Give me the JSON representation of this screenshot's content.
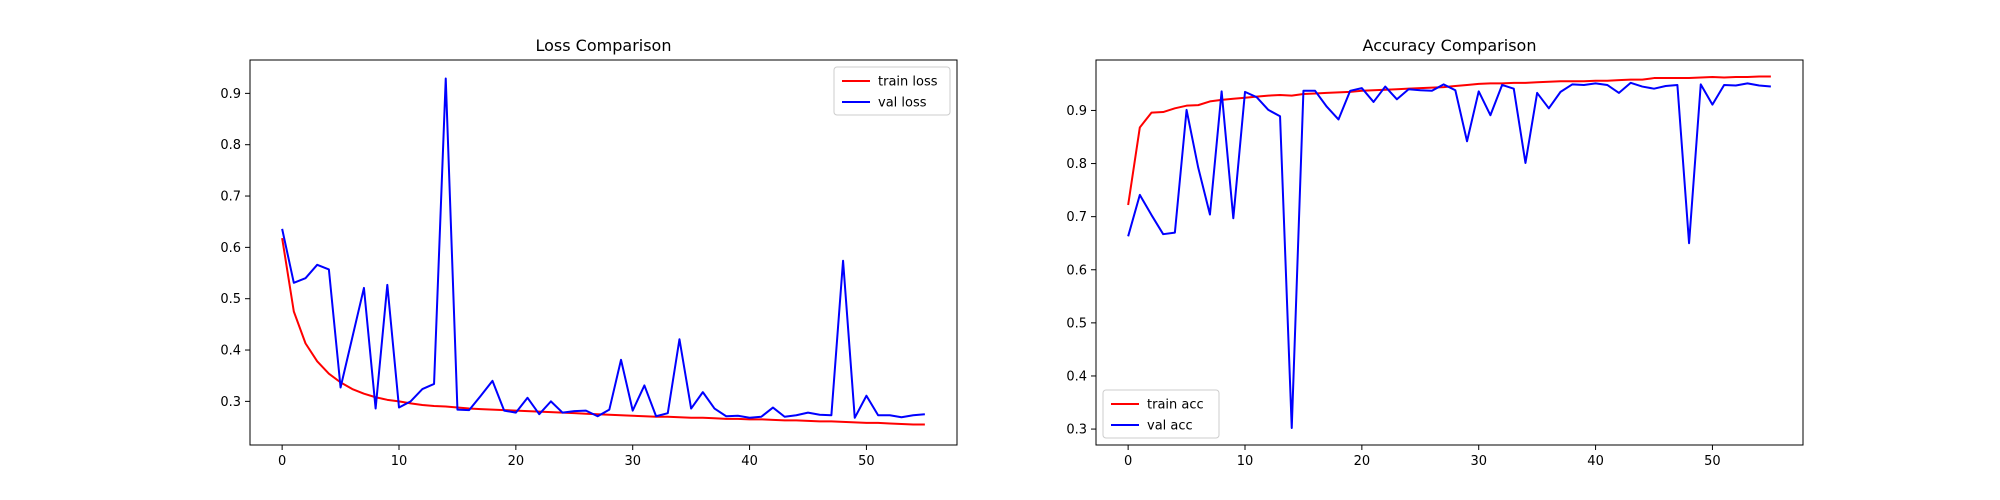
{
  "chart_data": [
    {
      "type": "line",
      "title": "Loss Comparison",
      "xlabel": "",
      "ylabel": "",
      "xlim": [
        -2.75,
        57.75
      ],
      "ylim": [
        0.215,
        0.965
      ],
      "xticks": [
        0,
        10,
        20,
        30,
        40,
        50
      ],
      "yticks": [
        0.3,
        0.4,
        0.5,
        0.6,
        0.7,
        0.8,
        0.9
      ],
      "grid": false,
      "legend": "top-right",
      "x": [
        0,
        1,
        2,
        3,
        4,
        5,
        6,
        7,
        8,
        9,
        10,
        11,
        12,
        13,
        14,
        15,
        16,
        17,
        18,
        19,
        20,
        21,
        22,
        23,
        24,
        25,
        26,
        27,
        28,
        29,
        30,
        31,
        32,
        33,
        34,
        35,
        36,
        37,
        38,
        39,
        40,
        41,
        42,
        43,
        44,
        45,
        46,
        47,
        48,
        49,
        50,
        51,
        52,
        53,
        54,
        55
      ],
      "series": [
        {
          "name": "train loss",
          "color": "#ff0000",
          "values": [
            0.618,
            0.475,
            0.413,
            0.378,
            0.354,
            0.337,
            0.324,
            0.315,
            0.308,
            0.303,
            0.3,
            0.296,
            0.293,
            0.291,
            0.29,
            0.288,
            0.286,
            0.285,
            0.284,
            0.283,
            0.282,
            0.281,
            0.28,
            0.279,
            0.278,
            0.277,
            0.276,
            0.275,
            0.274,
            0.273,
            0.272,
            0.271,
            0.27,
            0.27,
            0.269,
            0.268,
            0.268,
            0.267,
            0.266,
            0.266,
            0.265,
            0.265,
            0.264,
            0.263,
            0.263,
            0.262,
            0.261,
            0.261,
            0.26,
            0.259,
            0.258,
            0.258,
            0.257,
            0.256,
            0.255,
            0.255
          ]
        },
        {
          "name": "val loss",
          "color": "#0000ff",
          "values": [
            0.636,
            0.531,
            0.54,
            0.566,
            0.557,
            0.327,
            0.424,
            0.521,
            0.286,
            0.527,
            0.288,
            0.3,
            0.324,
            0.334,
            0.929,
            0.284,
            0.283,
            0.311,
            0.34,
            0.282,
            0.278,
            0.307,
            0.275,
            0.3,
            0.278,
            0.281,
            0.282,
            0.271,
            0.284,
            0.381,
            0.282,
            0.331,
            0.271,
            0.277,
            0.421,
            0.286,
            0.318,
            0.286,
            0.271,
            0.272,
            0.268,
            0.27,
            0.288,
            0.27,
            0.273,
            0.278,
            0.274,
            0.273,
            0.574,
            0.268,
            0.311,
            0.273,
            0.273,
            0.269,
            0.273,
            0.275
          ]
        }
      ]
    },
    {
      "type": "line",
      "title": "Accuracy Comparison",
      "xlabel": "",
      "ylabel": "",
      "xlim": [
        -2.75,
        57.75
      ],
      "ylim": [
        0.27,
        0.995
      ],
      "xticks": [
        0,
        10,
        20,
        30,
        40,
        50
      ],
      "yticks": [
        0.3,
        0.4,
        0.5,
        0.6,
        0.7,
        0.8,
        0.9
      ],
      "grid": false,
      "legend": "bottom-left",
      "x": [
        0,
        1,
        2,
        3,
        4,
        5,
        6,
        7,
        8,
        9,
        10,
        11,
        12,
        13,
        14,
        15,
        16,
        17,
        18,
        19,
        20,
        21,
        22,
        23,
        24,
        25,
        26,
        27,
        28,
        29,
        30,
        31,
        32,
        33,
        34,
        35,
        36,
        37,
        38,
        39,
        40,
        41,
        42,
        43,
        44,
        45,
        46,
        47,
        48,
        49,
        50,
        51,
        52,
        53,
        54,
        55
      ],
      "series": [
        {
          "name": "train acc",
          "color": "#ff0000",
          "values": [
            0.722,
            0.868,
            0.896,
            0.897,
            0.904,
            0.909,
            0.91,
            0.917,
            0.92,
            0.922,
            0.924,
            0.926,
            0.928,
            0.929,
            0.928,
            0.931,
            0.932,
            0.933,
            0.934,
            0.935,
            0.937,
            0.938,
            0.939,
            0.94,
            0.941,
            0.942,
            0.943,
            0.944,
            0.946,
            0.948,
            0.95,
            0.951,
            0.951,
            0.952,
            0.952,
            0.953,
            0.954,
            0.955,
            0.955,
            0.955,
            0.956,
            0.956,
            0.957,
            0.958,
            0.958,
            0.961,
            0.961,
            0.961,
            0.961,
            0.962,
            0.963,
            0.962,
            0.963,
            0.963,
            0.964,
            0.964
          ]
        },
        {
          "name": "val acc",
          "color": "#0000ff",
          "values": [
            0.663,
            0.741,
            0.703,
            0.667,
            0.67,
            0.901,
            0.792,
            0.704,
            0.936,
            0.697,
            0.935,
            0.925,
            0.901,
            0.889,
            0.302,
            0.937,
            0.937,
            0.907,
            0.883,
            0.937,
            0.942,
            0.916,
            0.945,
            0.921,
            0.94,
            0.938,
            0.937,
            0.949,
            0.938,
            0.842,
            0.936,
            0.891,
            0.948,
            0.941,
            0.801,
            0.933,
            0.904,
            0.935,
            0.949,
            0.948,
            0.951,
            0.948,
            0.933,
            0.952,
            0.945,
            0.941,
            0.946,
            0.948,
            0.65,
            0.949,
            0.911,
            0.948,
            0.947,
            0.951,
            0.947,
            0.945
          ]
        }
      ]
    }
  ]
}
